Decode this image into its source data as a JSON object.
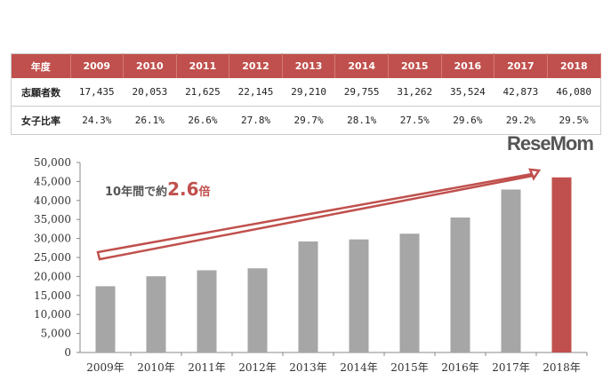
{
  "table": {
    "header": [
      "年度",
      "2009",
      "2010",
      "2011",
      "2012",
      "2013",
      "2014",
      "2015",
      "2016",
      "2017",
      "2018"
    ],
    "rows": [
      [
        "志願者数",
        "17,435",
        "20,053",
        "21,625",
        "22,145",
        "29,210",
        "29,755",
        "31,262",
        "35,524",
        "42,873",
        "46,080"
      ],
      [
        "女子比率",
        "24.3%",
        "26.1%",
        "26.6%",
        "27.8%",
        "29.7%",
        "28.1%",
        "27.5%",
        "29.6%",
        "29.2%",
        "29.5%"
      ]
    ]
  },
  "chart_data": {
    "type": "bar",
    "categories": [
      "2009年",
      "2010年",
      "2011年",
      "2012年",
      "2013年",
      "2014年",
      "2015年",
      "2016年",
      "2017年",
      "2018年"
    ],
    "values": [
      17435,
      20053,
      21625,
      22145,
      29210,
      29755,
      31262,
      35524,
      42873,
      46080
    ],
    "ylim": [
      0,
      50000
    ],
    "yticks": [
      "0",
      "5,000",
      "10,000",
      "15,000",
      "20,000",
      "25,000",
      "30,000",
      "35,000",
      "40,000",
      "45,000",
      "50,000"
    ],
    "annotation": {
      "prefix": "10年間で約",
      "value": "2.6",
      "suffix": "倍"
    },
    "colors": {
      "bar": "#a6a6a6",
      "highlight": "#c0504d"
    },
    "grid": false
  },
  "logo": "ReseMom"
}
